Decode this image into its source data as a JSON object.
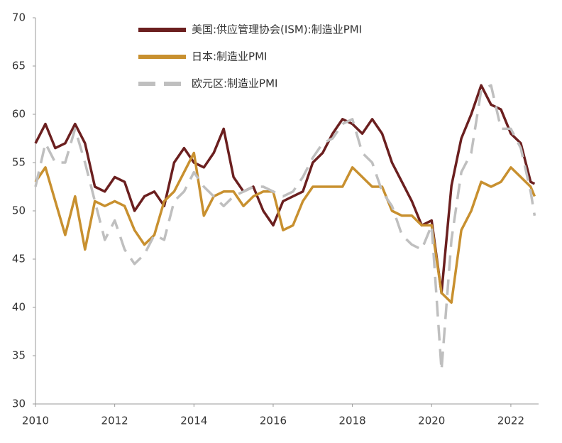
{
  "chart_data": {
    "type": "line",
    "x": [
      2010,
      2010.25,
      2010.5,
      2010.75,
      2011,
      2011.25,
      2011.5,
      2011.75,
      2012,
      2012.25,
      2012.5,
      2012.75,
      2013,
      2013.25,
      2013.5,
      2013.75,
      2014,
      2014.25,
      2014.5,
      2014.75,
      2015,
      2015.25,
      2015.5,
      2015.75,
      2016,
      2016.25,
      2016.5,
      2016.75,
      2017,
      2017.25,
      2017.5,
      2017.75,
      2018,
      2018.25,
      2018.5,
      2018.75,
      2019,
      2019.25,
      2019.5,
      2019.75,
      2020,
      2020.25,
      2020.5,
      2020.75,
      2021,
      2021.25,
      2021.5,
      2021.75,
      2022,
      2022.25,
      2022.5,
      2022.6
    ],
    "series": [
      {
        "name": "美国:供应管理协会(ISM):制造业PMI",
        "color": "#6b1f1f",
        "linestyle": "solid",
        "values": [
          57,
          59,
          56.5,
          57,
          59,
          57,
          52.5,
          52,
          53.5,
          53,
          50,
          51.5,
          52,
          50.5,
          55,
          56.5,
          55,
          54.5,
          56,
          58.5,
          53.5,
          52,
          52.5,
          50,
          48.5,
          51,
          51.5,
          52,
          55,
          56,
          58,
          59.5,
          59,
          58,
          59.5,
          58,
          55,
          53,
          51,
          48.5,
          49,
          41.5,
          52.6,
          57.5,
          60,
          63,
          61,
          60.5,
          58,
          57,
          53,
          52.8
        ]
      },
      {
        "name": "日本:制造业PMI",
        "color": "#c8902f",
        "linestyle": "solid",
        "values": [
          53,
          54.5,
          51,
          47.5,
          51.5,
          46,
          51,
          50.5,
          51,
          50.5,
          48,
          46.5,
          47.5,
          51,
          52,
          54,
          56,
          49.5,
          51.5,
          52,
          52,
          50.5,
          51.5,
          52,
          52,
          48,
          48.5,
          51,
          52.5,
          52.5,
          52.5,
          52.5,
          54.5,
          53.5,
          52.5,
          52.5,
          50,
          49.5,
          49.5,
          48.5,
          48.5,
          41.5,
          40.5,
          48,
          50,
          53,
          52.5,
          53,
          54.5,
          53.5,
          52.5,
          51.5
        ]
      },
      {
        "name": "欧元区:制造业PMI",
        "color": "#bfbfbf",
        "linestyle": "dashed",
        "values": [
          52.5,
          57,
          55,
          55,
          58.5,
          55,
          51,
          47,
          49,
          46,
          44.5,
          45.5,
          47.5,
          47,
          51,
          52,
          54,
          52.5,
          51.5,
          50.5,
          51.5,
          52,
          52.5,
          52.5,
          52,
          51.5,
          52,
          53.5,
          55.5,
          57,
          57.5,
          59,
          59.5,
          56,
          55,
          52,
          50.5,
          47.5,
          46.5,
          46,
          48.5,
          33.5,
          47,
          54,
          56,
          62.5,
          63,
          58.5,
          58.5,
          56.5,
          52,
          49.5
        ]
      }
    ],
    "xlim": [
      2010,
      2022.7
    ],
    "xticks": [
      2010,
      2012,
      2014,
      2016,
      2018,
      2020,
      2022
    ],
    "ylim": [
      30,
      70
    ],
    "yticks": [
      30,
      35,
      40,
      45,
      50,
      55,
      60,
      65,
      70
    ],
    "grid": false,
    "legend": "top"
  }
}
